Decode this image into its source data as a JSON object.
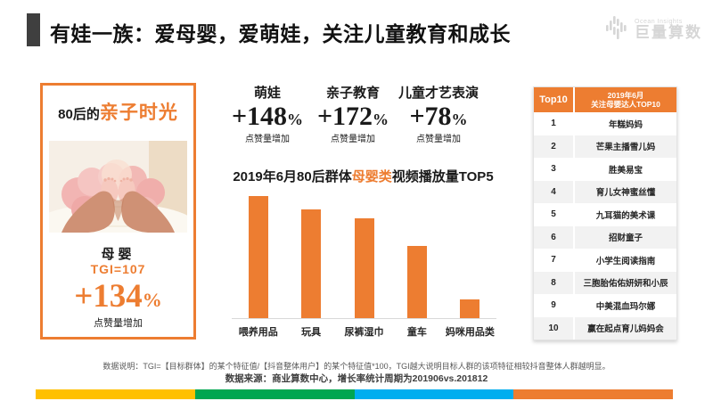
{
  "ui": {
    "percent": "%"
  },
  "header": {
    "title": "有娃一族：爱母婴，爱萌娃，关注儿童教育和成长",
    "logo_small": "Ocean Insights",
    "logo_name": "巨量算数"
  },
  "card": {
    "title_prefix": "80后的",
    "title_highlight": "亲子时光",
    "category": "母婴",
    "tgi": "TGI=107",
    "growth_value": "+134",
    "growth_caption": "点赞量增加"
  },
  "stats": [
    {
      "label": "萌娃",
      "value": "+148",
      "caption": "点赞量增加"
    },
    {
      "label": "亲子教育",
      "value": "+172",
      "caption": "点赞量增加"
    },
    {
      "label": "儿童才艺表演",
      "value": "+78",
      "caption": "点赞量增加"
    }
  ],
  "chart_data": {
    "type": "bar",
    "title": "2019年6月80后群体母婴类视频播放量TOP5",
    "title_parts": {
      "left": "2019年6月80后群体",
      "highlight": "母婴类",
      "right": "视频播放量TOP5"
    },
    "categories": [
      "喂养用品",
      "玩具",
      "尿裤湿巾",
      "童车",
      "妈咪用品类"
    ],
    "values": [
      100,
      89,
      82,
      59,
      15
    ],
    "ylim": [
      0,
      108
    ],
    "bar_color": "#ED7D31",
    "axis_labels_shown": false,
    "grid": false
  },
  "table": {
    "header_left": "Top10",
    "header_right_line1": "2019年6月",
    "header_right_line2": "关注母婴达人TOP10",
    "rows": [
      {
        "rank": "1",
        "name": "年糕妈妈"
      },
      {
        "rank": "2",
        "name": "芒果主播雪儿妈"
      },
      {
        "rank": "3",
        "name": "胜美易宝"
      },
      {
        "rank": "4",
        "name": "育儿女神蜜丝懂"
      },
      {
        "rank": "5",
        "name": "九耳猫的美术课"
      },
      {
        "rank": "6",
        "name": "招财童子"
      },
      {
        "rank": "7",
        "name": "小学生阅读指南"
      },
      {
        "rank": "8",
        "name": "三胞胎佑佑妍妍和小辰"
      },
      {
        "rank": "9",
        "name": "中美混血玛尔娜"
      },
      {
        "rank": "10",
        "name": "赢在起点育儿妈妈会"
      }
    ]
  },
  "footer": {
    "note1": "数据说明：TGI=【目标群体】的某个特征值/【抖音整体用户】的某个特征值*100，TGI越大说明目标人群的该项特征相较抖音整体人群越明显。",
    "note2": "数据来源：商业算数中心，增长率统计周期为201906vs.201812"
  },
  "colors": {
    "accent": "#ED7D31",
    "stripe": [
      "#FFC000",
      "#00A650",
      "#00AEEF",
      "#ED7D31"
    ]
  }
}
